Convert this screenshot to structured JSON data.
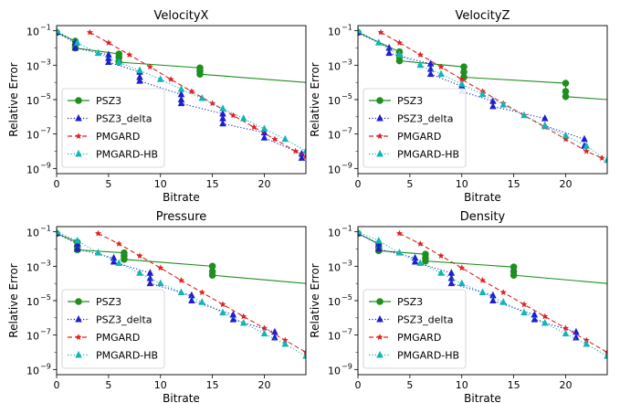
{
  "chart_data": [
    {
      "type": "line",
      "title": "VelocityX",
      "xlabel": "Bitrate",
      "ylabel": "Relative Error",
      "xlim": [
        0,
        24
      ],
      "ylim": [
        5e-10,
        0.2
      ],
      "yscale": "log",
      "xticks": [
        0,
        5,
        10,
        15,
        20
      ],
      "yticks": [
        0.1,
        0.001,
        1e-05,
        1e-07,
        1e-09
      ],
      "ytick_labels": [
        "10",
        "10",
        "10",
        "10",
        "10"
      ],
      "ytick_exponents": [
        "−1",
        "−3",
        "−5",
        "−7",
        "−9"
      ],
      "legend": "lower-left",
      "series": [
        {
          "name": "PSZ3",
          "color": "#1f8f1f",
          "style": "solid",
          "marker": "circle",
          "points": [
            [
              0,
              0.08
            ],
            [
              1.8,
              0.025
            ],
            [
              1.8,
              0.015
            ],
            [
              1.8,
              0.01
            ],
            [
              6,
              0.0045
            ],
            [
              6,
              0.0028
            ],
            [
              6,
              0.0015
            ],
            [
              13.8,
              0.0007
            ],
            [
              13.8,
              0.00045
            ],
            [
              13.8,
              0.0003
            ],
            [
              24,
              0.0001
            ]
          ]
        },
        {
          "name": "PSZ3_delta",
          "color": "#1f1fcf",
          "style": "dotted",
          "marker": "triangle",
          "points": [
            [
              0,
              0.08
            ],
            [
              1.8,
              0.02
            ],
            [
              1.8,
              0.01
            ],
            [
              5,
              0.004
            ],
            [
              5,
              0.0025
            ],
            [
              5,
              0.0015
            ],
            [
              8,
              0.0004
            ],
            [
              8,
              0.0002
            ],
            [
              8,
              0.00012
            ],
            [
              12,
              2e-05
            ],
            [
              12,
              1e-05
            ],
            [
              12,
              6e-06
            ],
            [
              16,
              1.5e-06
            ],
            [
              16,
              8e-07
            ],
            [
              16,
              4e-07
            ],
            [
              20,
              1.2e-07
            ],
            [
              20,
              6e-08
            ],
            [
              23.6,
              7e-09
            ],
            [
              23.6,
              4e-09
            ]
          ]
        },
        {
          "name": "PMGARD",
          "color": "#e02020",
          "style": "dashed",
          "marker": "star",
          "points": [
            [
              3.2,
              0.08
            ],
            [
              5,
              0.02
            ],
            [
              7,
              0.004
            ],
            [
              9,
              0.0008
            ],
            [
              11,
              0.00015
            ],
            [
              13,
              3e-05
            ],
            [
              15,
              6e-06
            ],
            [
              17,
              1.2e-06
            ],
            [
              19,
              2.5e-07
            ],
            [
              21,
              5e-08
            ],
            [
              23,
              1e-08
            ],
            [
              24,
              5e-09
            ]
          ]
        },
        {
          "name": "PMGARD-HB",
          "color": "#12b5b5",
          "style": "dotted",
          "marker": "triangle",
          "points": [
            [
              0,
              0.1
            ],
            [
              2,
              0.02
            ],
            [
              4,
              0.005
            ],
            [
              6,
              0.0015
            ],
            [
              8,
              0.0005
            ],
            [
              10,
              0.00015
            ],
            [
              12,
              4e-05
            ],
            [
              14,
              1.2e-05
            ],
            [
              16,
              3e-06
            ],
            [
              18,
              8e-07
            ],
            [
              20,
              2e-07
            ],
            [
              22,
              5e-08
            ],
            [
              24,
              1e-08
            ]
          ]
        }
      ]
    },
    {
      "type": "line",
      "title": "VelocityZ",
      "xlabel": "Bitrate",
      "ylabel": "Relative Error",
      "xlim": [
        0,
        24
      ],
      "ylim": [
        5e-10,
        0.2
      ],
      "yscale": "log",
      "xticks": [
        0,
        5,
        10,
        15,
        20
      ],
      "yticks": [
        0.1,
        0.001,
        1e-05,
        1e-07,
        1e-09
      ],
      "ytick_labels": [
        "10",
        "10",
        "10",
        "10",
        "10"
      ],
      "ytick_exponents": [
        "−1",
        "−3",
        "−5",
        "−7",
        "−9"
      ],
      "legend": "lower-left",
      "series": [
        {
          "name": "PSZ3",
          "color": "#1f8f1f",
          "style": "solid",
          "marker": "circle",
          "points": [
            [
              0,
              0.08
            ],
            [
              4,
              0.006
            ],
            [
              4,
              0.003
            ],
            [
              4,
              0.0018
            ],
            [
              10.2,
              0.0008
            ],
            [
              10.2,
              0.0004
            ],
            [
              10.2,
              0.0002
            ],
            [
              20,
              9e-05
            ],
            [
              20,
              3e-05
            ],
            [
              20,
              1.5e-05
            ],
            [
              24,
              1e-05
            ]
          ]
        },
        {
          "name": "PSZ3_delta",
          "color": "#1f1fcf",
          "style": "dotted",
          "marker": "triangle",
          "points": [
            [
              0,
              0.08
            ],
            [
              3,
              0.01
            ],
            [
              3,
              0.005
            ],
            [
              7,
              0.0012
            ],
            [
              7,
              0.0006
            ],
            [
              7,
              0.0003
            ],
            [
              10,
              6e-05
            ],
            [
              10,
              3e-05
            ],
            [
              13,
              8e-06
            ],
            [
              13,
              4e-06
            ],
            [
              18,
              8e-07
            ],
            [
              18,
              3e-07
            ],
            [
              21.8,
              5e-08
            ],
            [
              21.8,
              2e-08
            ]
          ]
        },
        {
          "name": "PMGARD",
          "color": "#e02020",
          "style": "dashed",
          "marker": "star",
          "points": [
            [
              2.2,
              0.08
            ],
            [
              4,
              0.02
            ],
            [
              6,
              0.004
            ],
            [
              8,
              0.0008
            ],
            [
              10,
              0.00015
            ],
            [
              12,
              3e-05
            ],
            [
              14,
              6e-06
            ],
            [
              16,
              1.2e-06
            ],
            [
              18,
              2.5e-07
            ],
            [
              20,
              5e-08
            ],
            [
              22,
              1e-08
            ],
            [
              23.5,
              4e-09
            ]
          ]
        },
        {
          "name": "PMGARD-HB",
          "color": "#12b5b5",
          "style": "dotted",
          "marker": "triangle",
          "points": [
            [
              0,
              0.1
            ],
            [
              2,
              0.02
            ],
            [
              4,
              0.004
            ],
            [
              6,
              0.001
            ],
            [
              8,
              0.0003
            ],
            [
              10,
              8e-05
            ],
            [
              12,
              2e-05
            ],
            [
              14,
              5e-06
            ],
            [
              16,
              1.2e-06
            ],
            [
              18,
              3e-07
            ],
            [
              20,
              8e-08
            ],
            [
              22,
              2e-08
            ],
            [
              24,
              3e-09
            ]
          ]
        }
      ]
    },
    {
      "type": "line",
      "title": "Pressure",
      "xlabel": "Bitrate",
      "ylabel": "Relative Error",
      "xlim": [
        0,
        24
      ],
      "ylim": [
        5e-10,
        0.2
      ],
      "yscale": "log",
      "xticks": [
        0,
        5,
        10,
        15,
        20
      ],
      "yticks": [
        0.1,
        0.001,
        1e-05,
        1e-07,
        1e-09
      ],
      "ytick_labels": [
        "10",
        "10",
        "10",
        "10",
        "10"
      ],
      "ytick_exponents": [
        "−1",
        "−3",
        "−5",
        "−7",
        "−9"
      ],
      "legend": "lower-left",
      "series": [
        {
          "name": "PSZ3",
          "color": "#1f8f1f",
          "style": "solid",
          "marker": "circle",
          "points": [
            [
              0,
              0.08
            ],
            [
              2,
              0.025
            ],
            [
              2,
              0.014
            ],
            [
              2,
              0.009
            ],
            [
              6.5,
              0.006
            ],
            [
              6.5,
              0.004
            ],
            [
              6.5,
              0.0025
            ],
            [
              15,
              0.001
            ],
            [
              15,
              0.0005
            ],
            [
              15,
              0.0003
            ],
            [
              24,
              0.0001
            ]
          ]
        },
        {
          "name": "PSZ3_delta",
          "color": "#1f1fcf",
          "style": "dotted",
          "marker": "triangle",
          "points": [
            [
              0,
              0.08
            ],
            [
              2,
              0.02
            ],
            [
              2,
              0.01
            ],
            [
              5.5,
              0.003
            ],
            [
              5.5,
              0.0018
            ],
            [
              9,
              0.0004
            ],
            [
              9,
              0.0002
            ],
            [
              9,
              0.0001
            ],
            [
              13,
              2e-05
            ],
            [
              13,
              1e-05
            ],
            [
              17,
              1.5e-06
            ],
            [
              17,
              8e-07
            ],
            [
              21,
              1.5e-07
            ],
            [
              21,
              7e-08
            ]
          ]
        },
        {
          "name": "PMGARD",
          "color": "#e02020",
          "style": "dashed",
          "marker": "star",
          "points": [
            [
              4,
              0.08
            ],
            [
              6,
              0.02
            ],
            [
              8,
              0.004
            ],
            [
              10,
              0.0008
            ],
            [
              12,
              0.00015
            ],
            [
              14,
              3e-05
            ],
            [
              16,
              6e-06
            ],
            [
              18,
              1.2e-06
            ],
            [
              20,
              2.5e-07
            ],
            [
              22,
              5e-08
            ],
            [
              24,
              1e-08
            ]
          ]
        },
        {
          "name": "PMGARD-HB",
          "color": "#12b5b5",
          "style": "dotted",
          "marker": "triangle",
          "points": [
            [
              0,
              0.1
            ],
            [
              2,
              0.03
            ],
            [
              4,
              0.006
            ],
            [
              6,
              0.0015
            ],
            [
              8,
              0.0004
            ],
            [
              10,
              0.0001
            ],
            [
              12,
              3e-05
            ],
            [
              14,
              8e-06
            ],
            [
              16,
              2e-06
            ],
            [
              18,
              5e-07
            ],
            [
              20,
              1.2e-07
            ],
            [
              22,
              3e-08
            ],
            [
              24,
              6e-09
            ]
          ]
        }
      ]
    },
    {
      "type": "line",
      "title": "Density",
      "xlabel": "Bitrate",
      "ylabel": "Relative Error",
      "xlim": [
        0,
        24
      ],
      "ylim": [
        5e-10,
        0.2
      ],
      "yscale": "log",
      "xticks": [
        0,
        5,
        10,
        15,
        20
      ],
      "yticks": [
        0.1,
        0.001,
        1e-05,
        1e-07,
        1e-09
      ],
      "ytick_labels": [
        "10",
        "10",
        "10",
        "10",
        "10"
      ],
      "ytick_exponents": [
        "−1",
        "−3",
        "−5",
        "−7",
        "−9"
      ],
      "legend": "lower-left",
      "series": [
        {
          "name": "PSZ3",
          "color": "#1f8f1f",
          "style": "solid",
          "marker": "circle",
          "points": [
            [
              0,
              0.08
            ],
            [
              2,
              0.02
            ],
            [
              2,
              0.012
            ],
            [
              2,
              0.008
            ],
            [
              6.5,
              0.005
            ],
            [
              6.5,
              0.003
            ],
            [
              6.5,
              0.002
            ],
            [
              15,
              0.0009
            ],
            [
              15,
              0.0005
            ],
            [
              15,
              0.0003
            ],
            [
              24,
              0.0001
            ]
          ]
        },
        {
          "name": "PSZ3_delta",
          "color": "#1f1fcf",
          "style": "dotted",
          "marker": "triangle",
          "points": [
            [
              0,
              0.08
            ],
            [
              2,
              0.02
            ],
            [
              2,
              0.01
            ],
            [
              5.5,
              0.003
            ],
            [
              5.5,
              0.0018
            ],
            [
              9,
              0.0004
            ],
            [
              9,
              0.0002
            ],
            [
              9,
              0.0001
            ],
            [
              13,
              2e-05
            ],
            [
              13,
              1e-05
            ],
            [
              17,
              1.5e-06
            ],
            [
              17,
              8e-07
            ],
            [
              21,
              1.5e-07
            ],
            [
              21,
              7e-08
            ]
          ]
        },
        {
          "name": "PMGARD",
          "color": "#e02020",
          "style": "dashed",
          "marker": "star",
          "points": [
            [
              4,
              0.08
            ],
            [
              6,
              0.02
            ],
            [
              8,
              0.004
            ],
            [
              10,
              0.0008
            ],
            [
              12,
              0.00015
            ],
            [
              14,
              3e-05
            ],
            [
              16,
              6e-06
            ],
            [
              18,
              1.2e-06
            ],
            [
              20,
              2.5e-07
            ],
            [
              22,
              5e-08
            ],
            [
              24,
              1e-08
            ]
          ]
        },
        {
          "name": "PMGARD-HB",
          "color": "#12b5b5",
          "style": "dotted",
          "marker": "triangle",
          "points": [
            [
              0,
              0.1
            ],
            [
              2,
              0.03
            ],
            [
              4,
              0.006
            ],
            [
              6,
              0.0015
            ],
            [
              8,
              0.0004
            ],
            [
              10,
              0.0001
            ],
            [
              12,
              3e-05
            ],
            [
              14,
              8e-06
            ],
            [
              16,
              2e-06
            ],
            [
              18,
              5e-07
            ],
            [
              20,
              1.2e-07
            ],
            [
              22,
              3e-08
            ],
            [
              24,
              6e-09
            ]
          ]
        }
      ]
    }
  ]
}
